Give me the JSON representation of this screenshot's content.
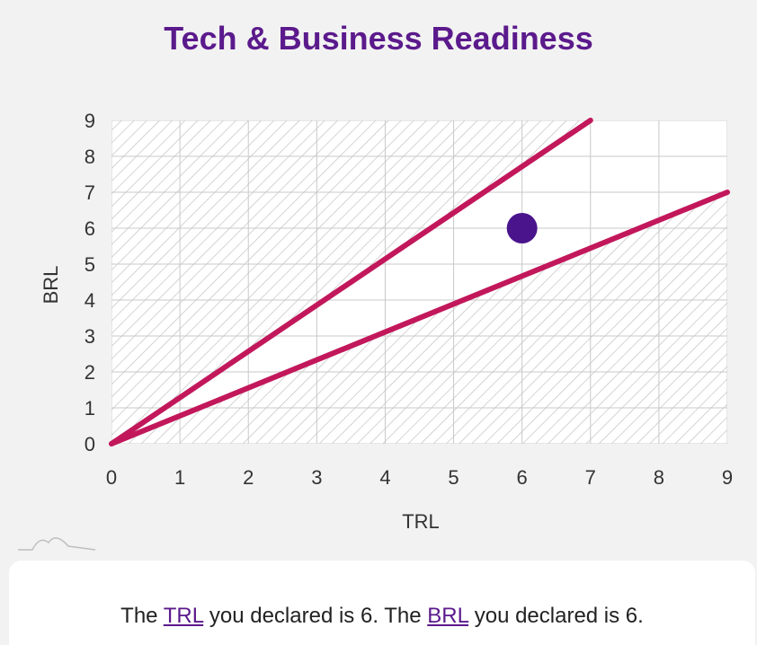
{
  "header": {
    "title": "Tech & Business Readiness"
  },
  "chart_data": {
    "type": "scatter",
    "title": "Tech & Business Readiness",
    "xlabel": "TRL",
    "ylabel": "BRL",
    "xlim": [
      0,
      9
    ],
    "ylim": [
      0,
      9
    ],
    "xticks": [
      "0",
      "1",
      "2",
      "3",
      "4",
      "5",
      "6",
      "7",
      "8",
      "9"
    ],
    "yticks": [
      "0",
      "1",
      "2",
      "3",
      "4",
      "5",
      "6",
      "7",
      "8",
      "9"
    ],
    "grid": true,
    "lines": [
      {
        "x": [
          0,
          7
        ],
        "y": [
          0,
          9
        ]
      },
      {
        "x": [
          0,
          9
        ],
        "y": [
          0,
          7
        ]
      }
    ],
    "points": [
      {
        "x": 6,
        "y": 6
      }
    ],
    "colors": {
      "line": "#c2185b",
      "point": "#4a148c",
      "grid": "#c8c8c8",
      "hatch": "#bdbdbd"
    }
  },
  "footer": {
    "prefix": "The ",
    "trl_link": "TRL",
    "middle": " you declared is 6. The ",
    "brl_link": "BRL",
    "suffix": " you declared is 6."
  },
  "logo": {
    "icon": "mountain-logo-icon"
  }
}
